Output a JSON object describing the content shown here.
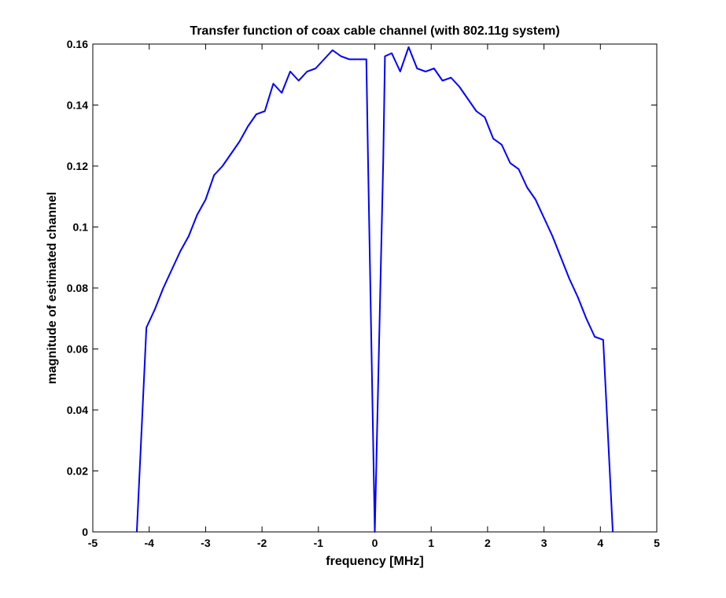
{
  "chart_data": {
    "type": "line",
    "title": "Transfer function of coax cable channel (with 802.11g system)",
    "xlabel": "frequency [MHz]",
    "ylabel": "magnitude of estimated channel",
    "xlim": [
      -5,
      5
    ],
    "ylim": [
      0,
      0.16
    ],
    "xticks": [
      "-5",
      "-4",
      "-3",
      "-2",
      "-1",
      "0",
      "1",
      "2",
      "3",
      "4",
      "5"
    ],
    "yticks": [
      "0",
      "0.02",
      "0.04",
      "0.06",
      "0.08",
      "0.1",
      "0.12",
      "0.14",
      "0.16"
    ],
    "grid": false,
    "series": [
      {
        "color": "#0000ff",
        "x": [
          -4.22,
          -4.05,
          -3.9,
          -3.75,
          -3.6,
          -3.45,
          -3.3,
          -3.15,
          -3.0,
          -2.85,
          -2.7,
          -2.55,
          -2.4,
          -2.25,
          -2.1,
          -1.95,
          -1.8,
          -1.65,
          -1.5,
          -1.35,
          -1.2,
          -1.05,
          -0.9,
          -0.75,
          -0.6,
          -0.45,
          -0.3,
          -0.15,
          -0.12,
          0.0,
          0.15,
          0.18,
          0.3,
          0.45,
          0.6,
          0.75,
          0.9,
          1.05,
          1.2,
          1.35,
          1.5,
          1.65,
          1.8,
          1.95,
          2.1,
          2.25,
          2.4,
          2.55,
          2.7,
          2.85,
          3.0,
          3.15,
          3.3,
          3.45,
          3.6,
          3.75,
          3.9,
          4.05,
          4.22
        ],
        "y": [
          0.0,
          0.067,
          0.073,
          0.08,
          0.086,
          0.092,
          0.097,
          0.104,
          0.109,
          0.117,
          0.12,
          0.124,
          0.128,
          0.133,
          0.137,
          0.138,
          0.147,
          0.144,
          0.151,
          0.148,
          0.151,
          0.152,
          0.155,
          0.158,
          0.156,
          0.155,
          0.155,
          0.155,
          0.122,
          0.0,
          0.122,
          0.156,
          0.157,
          0.151,
          0.159,
          0.152,
          0.151,
          0.152,
          0.148,
          0.149,
          0.146,
          0.142,
          0.138,
          0.136,
          0.129,
          0.127,
          0.121,
          0.119,
          0.113,
          0.109,
          0.103,
          0.097,
          0.09,
          0.083,
          0.077,
          0.07,
          0.064,
          0.063,
          0.0
        ]
      }
    ]
  }
}
